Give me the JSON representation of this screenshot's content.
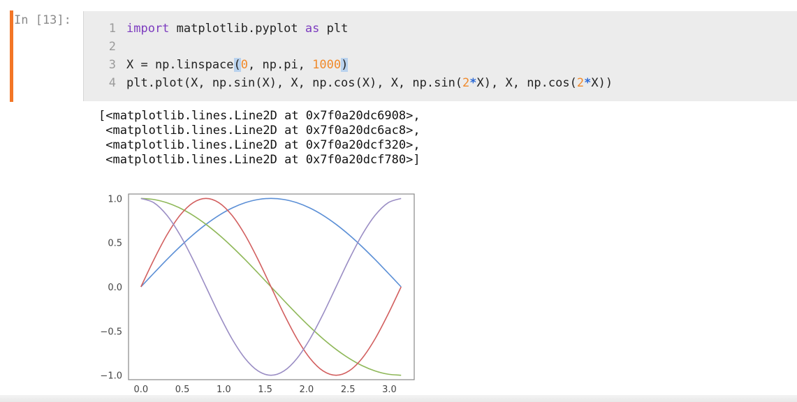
{
  "cell": {
    "prompt": "In [13]:",
    "line_numbers": [
      "1",
      "2",
      "3",
      "4"
    ]
  },
  "output_text": [
    "[<matplotlib.lines.Line2D at 0x7f0a20dc6908>,",
    " <matplotlib.lines.Line2D at 0x7f0a20dc6ac8>,",
    " <matplotlib.lines.Line2D at 0x7f0a20dcf320>,",
    " <matplotlib.lines.Line2D at 0x7f0a20dcf780>]"
  ],
  "colors": {
    "cell_accent": "#f37626",
    "keyword": "#7c3bbf",
    "number": "#f08a2c",
    "operator": "#2a69d6",
    "editor_bg": "#ececec"
  },
  "chart_data": {
    "type": "line",
    "xlim": [
      -0.15,
      3.3
    ],
    "ylim": [
      -1.05,
      1.05
    ],
    "xticks": [
      0.0,
      0.5,
      1.0,
      1.5,
      2.0,
      2.5,
      3.0
    ],
    "xtick_labels": [
      "0.0",
      "0.5",
      "1.0",
      "1.5",
      "2.0",
      "2.5",
      "3.0"
    ],
    "yticks": [
      1.0,
      0.5,
      0.0,
      -0.5,
      -1.0
    ],
    "ytick_labels": [
      "1.0",
      "0.5",
      "0.0",
      "−0.5",
      "−1.0"
    ],
    "grid": false,
    "x": [
      0,
      0.1571,
      0.3142,
      0.4712,
      0.6283,
      0.7854,
      0.9425,
      1.0996,
      1.2566,
      1.4137,
      1.5708,
      1.7279,
      1.885,
      2.042,
      2.1991,
      2.3562,
      2.5133,
      2.6704,
      2.8274,
      2.9845,
      3.1416
    ],
    "series": [
      {
        "color": "#5b8fd6",
        "values": [
          0,
          0.156,
          0.309,
          0.454,
          0.588,
          0.707,
          0.809,
          0.891,
          0.951,
          0.988,
          1,
          0.988,
          0.951,
          0.891,
          0.809,
          0.707,
          0.588,
          0.454,
          0.309,
          0.156,
          0
        ]
      },
      {
        "color": "#8fb859",
        "values": [
          1,
          0.988,
          0.951,
          0.891,
          0.809,
          0.707,
          0.588,
          0.454,
          0.309,
          0.156,
          0,
          -0.156,
          -0.309,
          -0.454,
          -0.588,
          -0.707,
          -0.809,
          -0.891,
          -0.951,
          -0.988,
          -1
        ]
      },
      {
        "color": "#d25f5f",
        "values": [
          0,
          0.309,
          0.588,
          0.809,
          0.951,
          1,
          0.951,
          0.809,
          0.588,
          0.309,
          0,
          -0.309,
          -0.588,
          -0.809,
          -0.951,
          -1,
          -0.951,
          -0.809,
          -0.588,
          -0.309,
          0
        ]
      },
      {
        "color": "#9a8dc4",
        "values": [
          1,
          0.951,
          0.809,
          0.588,
          0.309,
          0,
          -0.309,
          -0.588,
          -0.809,
          -0.951,
          -1,
          -0.951,
          -0.809,
          -0.588,
          -0.309,
          0,
          0.309,
          0.588,
          0.809,
          0.951,
          1
        ]
      }
    ]
  }
}
